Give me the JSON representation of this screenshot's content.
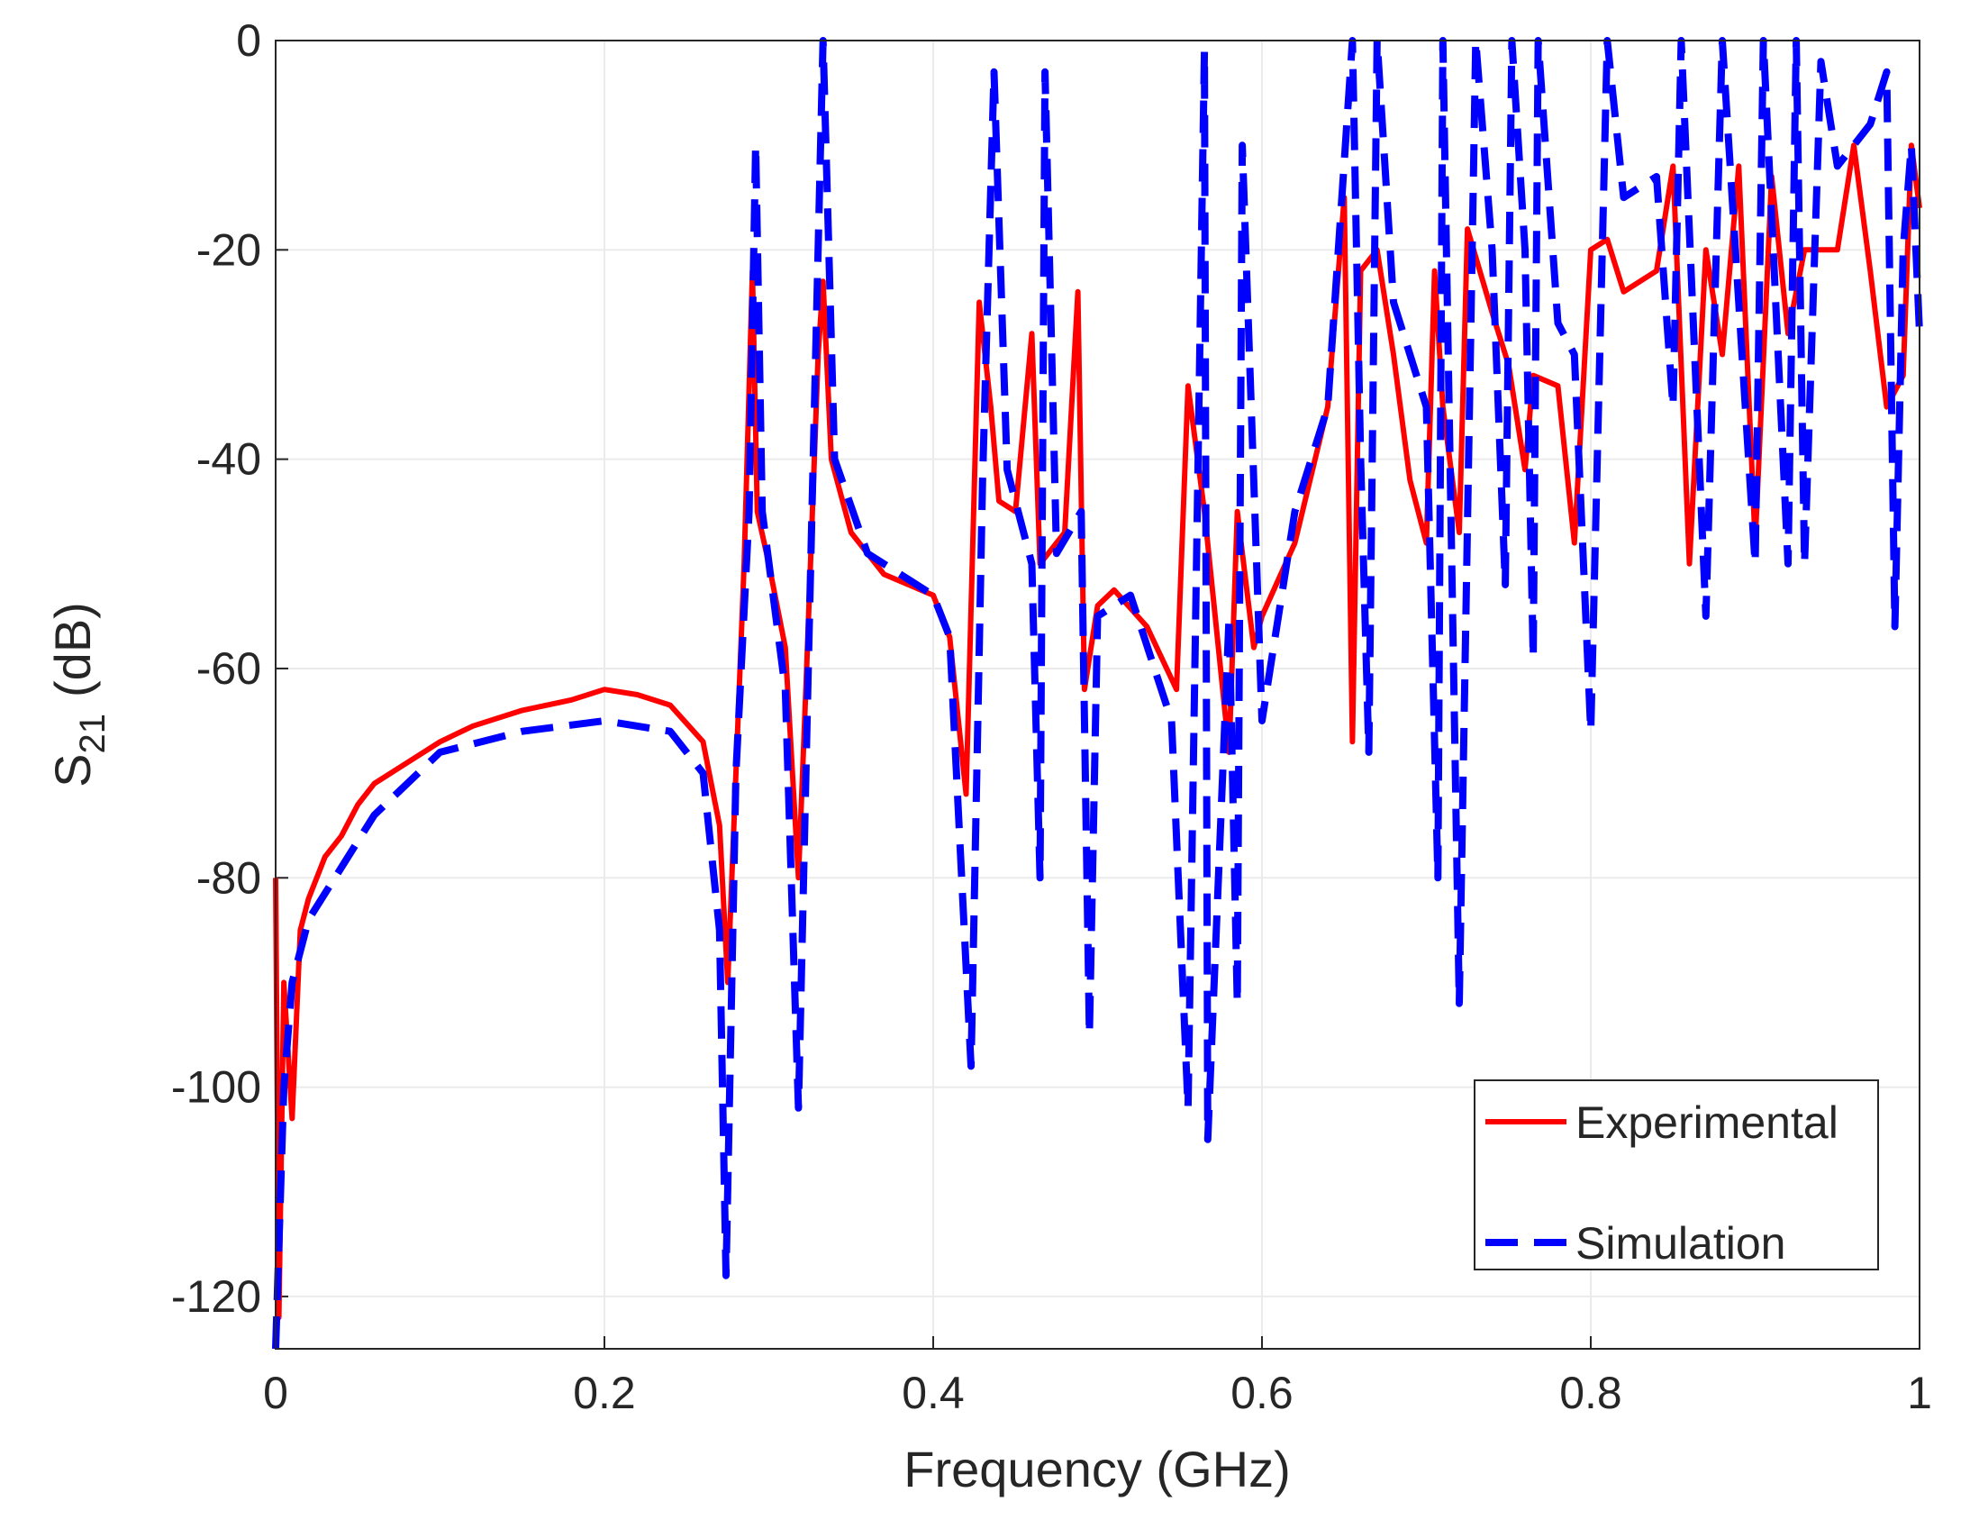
{
  "chart_data": {
    "type": "line",
    "xlabel": "Frequency (GHz)",
    "ylabel": {
      "base": "S",
      "subscript": "21",
      "unit": "(dB)"
    },
    "xlim": [
      0,
      1
    ],
    "xticks": [
      0,
      0.2,
      0.4,
      0.6,
      0.8,
      1
    ],
    "ylim": [
      -125,
      0
    ],
    "yticks": [
      -120,
      -100,
      -80,
      -60,
      -40,
      -20,
      0
    ],
    "grid": true,
    "legend": "lower right",
    "series": [
      {
        "name": "Experimental",
        "color": "#ff0000",
        "dashed": false,
        "x": [
          0,
          0.002,
          0.005,
          0.01,
          0.015,
          0.02,
          0.03,
          0.04,
          0.05,
          0.06,
          0.08,
          0.1,
          0.12,
          0.15,
          0.18,
          0.2,
          0.22,
          0.24,
          0.26,
          0.27,
          0.275,
          0.28,
          0.285,
          0.29,
          0.293,
          0.3,
          0.31,
          0.318,
          0.323,
          0.33,
          0.333,
          0.338,
          0.35,
          0.37,
          0.4,
          0.41,
          0.42,
          0.428,
          0.435,
          0.44,
          0.45,
          0.46,
          0.465,
          0.48,
          0.488,
          0.492,
          0.5,
          0.51,
          0.53,
          0.548,
          0.555,
          0.565,
          0.58,
          0.585,
          0.595,
          0.6,
          0.62,
          0.64,
          0.65,
          0.655,
          0.66,
          0.67,
          0.68,
          0.69,
          0.7,
          0.705,
          0.71,
          0.72,
          0.725,
          0.74,
          0.75,
          0.76,
          0.765,
          0.78,
          0.79,
          0.8,
          0.81,
          0.82,
          0.84,
          0.85,
          0.86,
          0.87,
          0.88,
          0.89,
          0.9,
          0.91,
          0.92,
          0.93,
          0.95,
          0.96,
          0.97,
          0.98,
          0.99,
          0.995,
          1.0
        ],
        "values": [
          -80,
          -122,
          -90,
          -103,
          -85,
          -82,
          -78,
          -76,
          -73,
          -71,
          -69,
          -67,
          -65.5,
          -64,
          -63,
          -62,
          -62.5,
          -63.5,
          -67,
          -75,
          -90,
          -70,
          -50,
          -22,
          -45,
          -50,
          -58,
          -80,
          -60,
          -30,
          -23,
          -40,
          -47,
          -51,
          -53,
          -57,
          -72,
          -25,
          -35,
          -44,
          -45,
          -28,
          -50,
          -47,
          -24,
          -62,
          -54,
          -52.5,
          -56,
          -62,
          -33,
          -45,
          -68,
          -45,
          -58,
          -55,
          -48,
          -35,
          -15,
          -67,
          -22,
          -20,
          -30,
          -42,
          -48,
          -22,
          -35,
          -47,
          -18,
          -26,
          -31,
          -41,
          -32,
          -33,
          -48,
          -20,
          -19,
          -24,
          -22,
          -12,
          -50,
          -20,
          -30,
          -12,
          -48,
          -13,
          -28,
          -20,
          -20,
          -10,
          -22,
          -35,
          -32,
          -10,
          -16
        ]
      },
      {
        "name": "Simulation",
        "color": "#0000ff",
        "dashed": true,
        "x": [
          0,
          0.005,
          0.01,
          0.02,
          0.04,
          0.06,
          0.1,
          0.15,
          0.2,
          0.24,
          0.26,
          0.27,
          0.274,
          0.28,
          0.288,
          0.292,
          0.296,
          0.31,
          0.318,
          0.324,
          0.333,
          0.34,
          0.36,
          0.4,
          0.41,
          0.423,
          0.43,
          0.437,
          0.445,
          0.46,
          0.465,
          0.468,
          0.475,
          0.49,
          0.495,
          0.5,
          0.52,
          0.545,
          0.555,
          0.565,
          0.567,
          0.58,
          0.585,
          0.588,
          0.6,
          0.62,
          0.64,
          0.655,
          0.66,
          0.665,
          0.67,
          0.68,
          0.7,
          0.707,
          0.71,
          0.72,
          0.73,
          0.74,
          0.748,
          0.752,
          0.76,
          0.765,
          0.768,
          0.78,
          0.79,
          0.8,
          0.81,
          0.82,
          0.84,
          0.85,
          0.855,
          0.87,
          0.88,
          0.9,
          0.905,
          0.92,
          0.925,
          0.93,
          0.94,
          0.95,
          0.97,
          0.98,
          0.985,
          0.99,
          0.995,
          1.0
        ],
        "values": [
          -125,
          -100,
          -90,
          -84,
          -79,
          -74,
          -68,
          -66,
          -65,
          -66,
          -70,
          -85,
          -118,
          -70,
          -45,
          -10,
          -45,
          -62,
          -102,
          -60,
          0,
          -40,
          -49,
          -53,
          -57,
          -98,
          -42,
          -3,
          -41,
          -50,
          -80,
          -3,
          -49,
          -45,
          -95,
          -55,
          -53,
          -65,
          -102,
          -1,
          -105,
          -55,
          -92,
          -10,
          -65,
          -45,
          -35,
          0,
          -40,
          -68,
          0,
          -25,
          -35,
          -80,
          0,
          -92,
          0,
          -20,
          -52,
          0,
          -20,
          -59,
          0,
          -27,
          -30,
          -66,
          0,
          -15,
          -13,
          -35,
          0,
          -55,
          0,
          -50,
          0,
          -50,
          0,
          -50,
          -2,
          -12,
          -8,
          -3,
          -56,
          -20,
          -10,
          -28
        ]
      }
    ]
  }
}
